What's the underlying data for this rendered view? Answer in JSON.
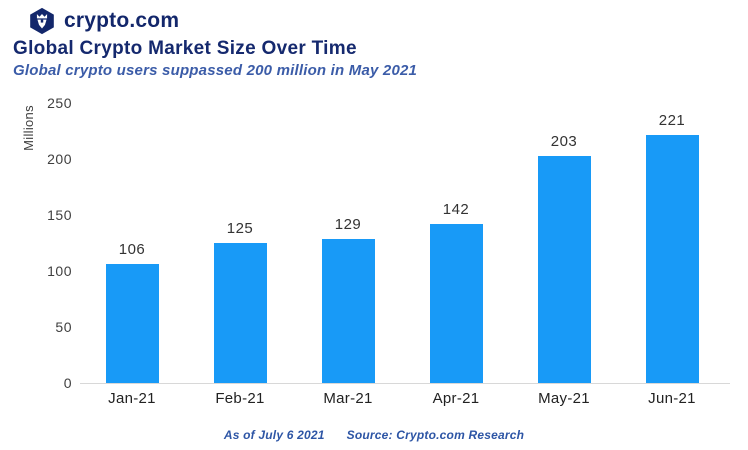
{
  "brand": {
    "name": "crypto.com",
    "logo_icon": "crypto-com-lion-hexagon",
    "navy": "#13276b"
  },
  "chart_data": {
    "type": "bar",
    "title": "Global Crypto Market Size Over Time",
    "subtitle": "Global crypto users suppassed 200 million in May 2021",
    "categories": [
      "Jan-21",
      "Feb-21",
      "Mar-21",
      "Apr-21",
      "May-21",
      "Jun-21"
    ],
    "values": [
      106,
      125,
      129,
      142,
      203,
      221
    ],
    "xlabel": "",
    "ylabel": "Millions",
    "yticks": [
      0,
      50,
      100,
      150,
      200,
      250
    ],
    "ylim": [
      0,
      250
    ],
    "bar_color": "#189af7",
    "grid": false,
    "legend": false,
    "data_labels": true
  },
  "footer": {
    "as_of": "As of July 6 2021",
    "source": "Source: Crypto.com Research"
  }
}
